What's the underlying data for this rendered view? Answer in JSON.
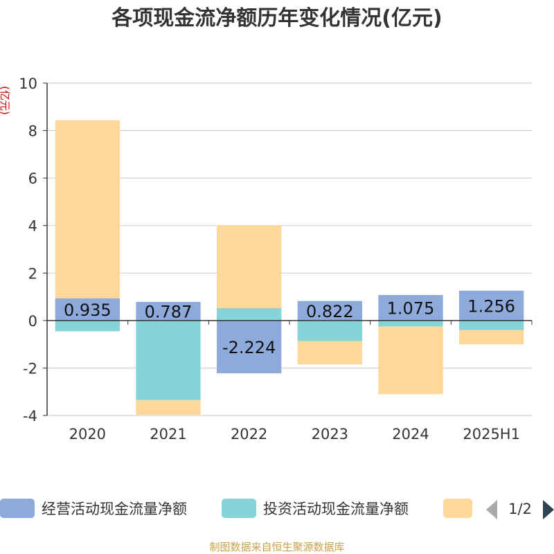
{
  "chart_data": {
    "type": "bar",
    "stacked": true,
    "title": "各项现金流净额历年变化情况(亿元)",
    "ylabel": "(亿元)",
    "xlabel": "",
    "ylim": [
      -4,
      10
    ],
    "yticks": [
      -4,
      -2,
      0,
      2,
      4,
      6,
      8,
      10
    ],
    "grid": true,
    "categories": [
      "2020",
      "2021",
      "2022",
      "2023",
      "2024",
      "2025H1"
    ],
    "series": [
      {
        "name": "经营活动现金流量净额",
        "color": "#8eaadb",
        "values": [
          0.935,
          0.787,
          -2.224,
          0.822,
          1.075,
          1.256
        ],
        "labels": true
      },
      {
        "name": "投资活动现金流量净额",
        "color": "#86d4d8",
        "values": [
          -0.45,
          -3.35,
          0.52,
          -0.87,
          -0.25,
          -0.4
        ],
        "labels": false
      },
      {
        "name": "",
        "color": "#fdd89a",
        "values": [
          7.5,
          -0.62,
          3.5,
          -0.98,
          -2.85,
          -0.6
        ],
        "labels": false
      }
    ]
  },
  "legend": {
    "items": [
      "经营活动现金流量净额",
      "投资活动现金流量净额",
      ""
    ],
    "page": "1/2",
    "prev_icon": "triangle-left-icon",
    "next_icon": "triangle-right-icon"
  },
  "source": "制图数据来自恒生聚源数据库",
  "colors": {
    "title": "#333333",
    "ylabel": "#cc0000",
    "source": "#c8a04a",
    "axis": "#333333",
    "grid": "#c8c8c8"
  }
}
